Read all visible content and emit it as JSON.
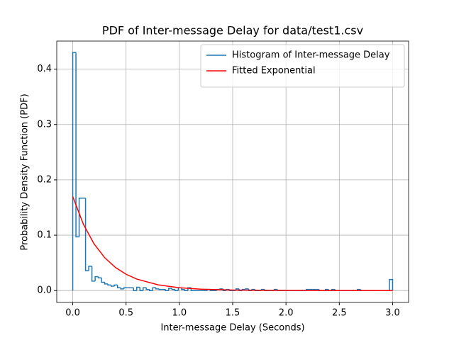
{
  "chart_data": {
    "type": "histogram",
    "title": "PDF of Inter-message Delay for data/test1.csv",
    "xlabel": "Inter-message Delay (Seconds)",
    "ylabel": "Probability Density Function (PDF)",
    "xlim": [
      -0.15,
      3.15
    ],
    "ylim": [
      -0.0215,
      0.4507
    ],
    "xticks": [
      {
        "value": 0,
        "label": "0.0"
      },
      {
        "value": 0.5,
        "label": "0.5"
      },
      {
        "value": 1,
        "label": "1.0"
      },
      {
        "value": 1.5,
        "label": "1.5"
      },
      {
        "value": 2,
        "label": "2.0"
      },
      {
        "value": 2.5,
        "label": "2.5"
      },
      {
        "value": 3,
        "label": "3.0"
      }
    ],
    "yticks": [
      {
        "value": 0,
        "label": "0.0"
      },
      {
        "value": 0.1,
        "label": "0.1"
      },
      {
        "value": 0.2,
        "label": "0.2"
      },
      {
        "value": 0.3,
        "label": "0.3"
      },
      {
        "value": 0.4,
        "label": "0.4"
      }
    ],
    "grid": true,
    "legend": "upper right",
    "series": [
      {
        "name": "Histogram of Inter-message Delay",
        "color": "#1f77b4",
        "bins": [
          0,
          0.03,
          0.06,
          0.09,
          0.12,
          0.15,
          0.18,
          0.21,
          0.24,
          0.27,
          0.3,
          0.33,
          0.36,
          0.39,
          0.42,
          0.45,
          0.48,
          0.51,
          0.54,
          0.57,
          0.6,
          0.63,
          0.66,
          0.69,
          0.72,
          0.75,
          0.78,
          0.81,
          0.84,
          0.87,
          0.9,
          0.93,
          0.96,
          0.99,
          1.02,
          1.05,
          1.08,
          1.11,
          1.14,
          1.17,
          1.2,
          1.23,
          1.26,
          1.29,
          1.32,
          1.35,
          1.38,
          1.41,
          1.44,
          1.47,
          1.5,
          1.53,
          1.56,
          1.59,
          1.62,
          1.65,
          1.68,
          1.71,
          1.74,
          1.77,
          1.8,
          1.83,
          1.86,
          1.89,
          1.92,
          1.95,
          1.98,
          2.01,
          2.04,
          2.07,
          2.1,
          2.13,
          2.16,
          2.19,
          2.22,
          2.25,
          2.28,
          2.31,
          2.34,
          2.37,
          2.4,
          2.43,
          2.46,
          2.49,
          2.52,
          2.55,
          2.58,
          2.61,
          2.64,
          2.67,
          2.7,
          2.73,
          2.76,
          2.79,
          2.82,
          2.85,
          2.88,
          2.91,
          2.94,
          2.97,
          3.0
        ],
        "values": [
          0.43,
          0.097,
          0.167,
          0.167,
          0.036,
          0.044,
          0.017,
          0.025,
          0.023,
          0.015,
          0.012,
          0.01,
          0.008,
          0.01,
          0.005,
          0.003,
          0.005,
          0.005,
          0.005,
          0,
          0.006,
          0,
          0.005,
          0.002,
          0,
          0.005,
          0.003,
          0.002,
          0.002,
          0,
          0.004,
          0.002,
          0,
          0.005,
          0.002,
          0,
          0.005,
          0,
          0,
          0,
          0,
          0,
          0.002,
          0,
          0,
          0.002,
          0.003,
          0,
          0.002,
          0,
          0,
          0.003,
          0,
          0.002,
          0.003,
          0,
          0.002,
          0,
          0,
          0.002,
          0,
          0,
          0,
          0.002,
          0,
          0,
          0,
          0,
          0,
          0,
          0,
          0,
          0,
          0.002,
          0.002,
          0.002,
          0.002,
          0,
          0,
          0.002,
          0,
          0.002,
          0,
          0,
          0,
          0,
          0,
          0,
          0,
          0.002,
          0,
          0,
          0,
          0,
          0,
          0,
          0,
          0,
          0,
          0.02
        ]
      },
      {
        "name": "Fitted Exponential",
        "color": "#ff0000",
        "type": "line",
        "x": [
          0,
          0.1,
          0.2,
          0.3,
          0.4,
          0.5,
          0.6,
          0.8,
          1.0,
          1.2,
          1.5,
          2.0,
          2.5,
          3.0
        ],
        "values": [
          0.17,
          0.1197,
          0.0843,
          0.0594,
          0.0418,
          0.0295,
          0.0208,
          0.0103,
          0.0051,
          0.0025,
          0.0009,
          0.0002,
          3e-05,
          0
        ]
      }
    ]
  }
}
